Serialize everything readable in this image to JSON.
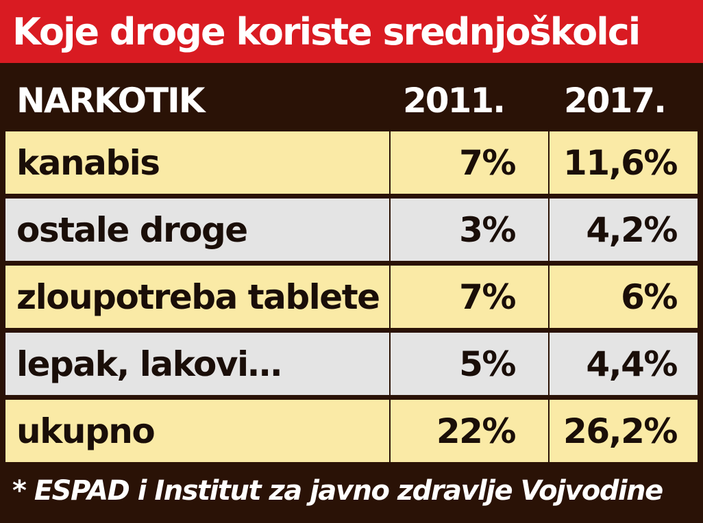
{
  "title": "Koje droge koriste srednjoškolci",
  "chart_data": {
    "type": "table",
    "title": "Koje droge koriste srednjoškolci",
    "columns": [
      "NARKOTIK",
      "2011.",
      "2017."
    ],
    "rows": [
      {
        "name": "kanabis",
        "v2011": "7%",
        "v2017": "11,6%"
      },
      {
        "name": "ostale droge",
        "v2011": "3%",
        "v2017": "4,2%"
      },
      {
        "name": "zloupotreba tablete",
        "v2011": "7%",
        "v2017": "6%"
      },
      {
        "name": "lepak, lakovi…",
        "v2011": "5%",
        "v2017": "4,4%"
      },
      {
        "name": "ukupno",
        "v2011": "22%",
        "v2017": "26,2%"
      }
    ],
    "source": "* ESPAD i Institut za javno zdravlje Vojvodine"
  },
  "colors": {
    "title_bg": "#d91b22",
    "header_bg": "#2a1206",
    "row_yellow": "#faeaa6",
    "row_gray": "#e4e4e4"
  }
}
